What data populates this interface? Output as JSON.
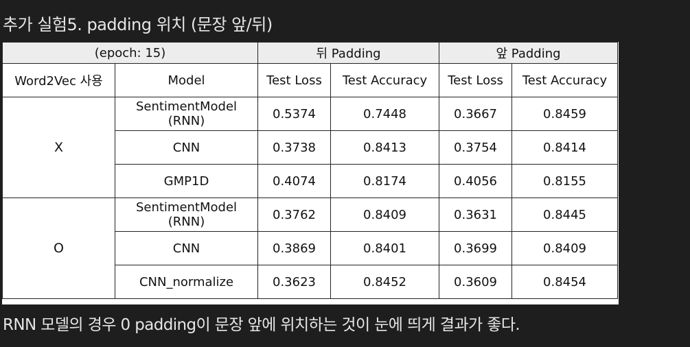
{
  "heading": "추가 실험5. padding 위치 (문장 앞/뒤)",
  "table": {
    "epoch_label": "(epoch: 15)",
    "group_back": "뒤 Padding",
    "group_front": "앞 Padding",
    "col_word2vec": "Word2Vec 사용",
    "col_model": "Model",
    "col_back_loss": "Test Loss",
    "col_back_acc": "Test Accuracy",
    "col_front_loss": "Test Loss",
    "col_front_acc": "Test Accuracy",
    "groups": [
      {
        "word2vec": "X",
        "rows": [
          {
            "model_line1": "SentimentModel",
            "model_line2": "(RNN)",
            "back_loss": "0.5374",
            "back_acc": "0.7448",
            "front_loss": "0.3667",
            "front_acc": "0.8459"
          },
          {
            "model_line1": "CNN",
            "model_line2": "",
            "back_loss": "0.3738",
            "back_acc": "0.8413",
            "front_loss": "0.3754",
            "front_acc": "0.8414"
          },
          {
            "model_line1": "GMP1D",
            "model_line2": "",
            "back_loss": "0.4074",
            "back_acc": "0.8174",
            "front_loss": "0.4056",
            "front_acc": "0.8155"
          }
        ]
      },
      {
        "word2vec": "O",
        "rows": [
          {
            "model_line1": "SentimentModel",
            "model_line2": "(RNN)",
            "back_loss": "0.3762",
            "back_acc": "0.8409",
            "front_loss": "0.3631",
            "front_acc": "0.8445"
          },
          {
            "model_line1": "CNN",
            "model_line2": "",
            "back_loss": "0.3869",
            "back_acc": "0.8401",
            "front_loss": "0.3699",
            "front_acc": "0.8409"
          },
          {
            "model_line1": "CNN_normalize",
            "model_line2": "",
            "back_loss": "0.3623",
            "back_acc": "0.8452",
            "front_loss": "0.3609",
            "front_acc": "0.8454"
          }
        ]
      }
    ]
  },
  "footer_note": "RNN 모델의 경우 0 padding이 문장 앞에 위치하는 것이 눈에 띄게 결과가 좋다."
}
